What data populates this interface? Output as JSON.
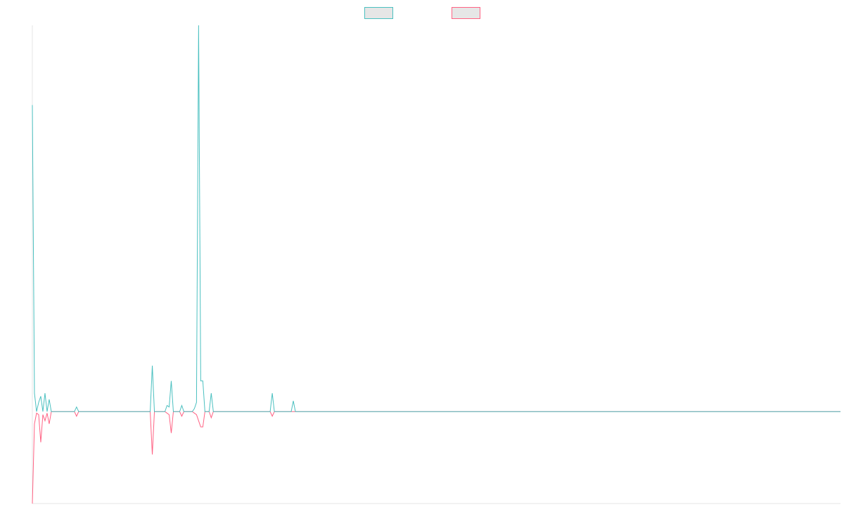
{
  "chart_data": {
    "type": "line",
    "title": "",
    "xlabel": "",
    "ylabel": "",
    "x": [
      0,
      1,
      2,
      3,
      4,
      5,
      6,
      7,
      8,
      9,
      10,
      11,
      12,
      13,
      14,
      15,
      16,
      17,
      18,
      19,
      20,
      21,
      22,
      23,
      24,
      25,
      26,
      27,
      28,
      29,
      30,
      31,
      32,
      33,
      34,
      35,
      36,
      37,
      38,
      39,
      40,
      41,
      42,
      43,
      44,
      45,
      46,
      47,
      48,
      49,
      50,
      51,
      52,
      53,
      54,
      55,
      56,
      57,
      58,
      59,
      60,
      61,
      62,
      63,
      64,
      65,
      66,
      67,
      68,
      69,
      70,
      71,
      72,
      73,
      74,
      75,
      76,
      77,
      78,
      79,
      80,
      81,
      82,
      83,
      84,
      85,
      86,
      87,
      88,
      89,
      90,
      91,
      92,
      93,
      94,
      95,
      96,
      97,
      98,
      99,
      100,
      101,
      102,
      103,
      104,
      105,
      106,
      107,
      108,
      109,
      110,
      111,
      112,
      113,
      114,
      115,
      116,
      117,
      118,
      119,
      120,
      121,
      122,
      123,
      124,
      125,
      126,
      127,
      128,
      129,
      130,
      131,
      132,
      133,
      134,
      135,
      136,
      137,
      138,
      139,
      140,
      141,
      142,
      143,
      144,
      145,
      146,
      147,
      148,
      149,
      150,
      151,
      152,
      153,
      154,
      155,
      156,
      157,
      158,
      159,
      160,
      161,
      162,
      163,
      164,
      165,
      166,
      167,
      168,
      169,
      170,
      171,
      172,
      173,
      174,
      175,
      176,
      177,
      178,
      179,
      180,
      181,
      182,
      183,
      184,
      185,
      186,
      187,
      188,
      189,
      190,
      191,
      192,
      193,
      194,
      195,
      196,
      197,
      198,
      199,
      200,
      201,
      202,
      203,
      204,
      205,
      206,
      207,
      208,
      209,
      210,
      211,
      212,
      213,
      214,
      215,
      216,
      217,
      218,
      219,
      220,
      221,
      222,
      223,
      224,
      225,
      226,
      227,
      228,
      229,
      230,
      231,
      232,
      233,
      234,
      235,
      236,
      237,
      238,
      239,
      240,
      241,
      242,
      243,
      244,
      245,
      246,
      247,
      248,
      249,
      250,
      251,
      252,
      253,
      254,
      255,
      256,
      257,
      258,
      259,
      260,
      261,
      262,
      263,
      264,
      265,
      266,
      267,
      268,
      269,
      270,
      271,
      272,
      273,
      274,
      275,
      276,
      277,
      278,
      279,
      280,
      281,
      282,
      283,
      284,
      285,
      286,
      287,
      288,
      289,
      290,
      291,
      292,
      293,
      294,
      295,
      296,
      297,
      298,
      299,
      300,
      301,
      302,
      303,
      304,
      305,
      306,
      307,
      308,
      309,
      310,
      311,
      312,
      313,
      314,
      315,
      316,
      317,
      318,
      319,
      320,
      321,
      322,
      323,
      324,
      325,
      326,
      327,
      328,
      329,
      330,
      331,
      332,
      333,
      334,
      335,
      336,
      337,
      338,
      339,
      340,
      341,
      342,
      343,
      344,
      345,
      346,
      347,
      348,
      349,
      350,
      351,
      352,
      353,
      354,
      355,
      356,
      357,
      358,
      359,
      360,
      361,
      362,
      363,
      364,
      365,
      366,
      367,
      368,
      369,
      370,
      371,
      372,
      373,
      374,
      375,
      376,
      377,
      378,
      379,
      380,
      381,
      382,
      383,
      384
    ],
    "xlim": [
      0,
      384
    ],
    "ylim": [
      -30,
      126
    ],
    "grid": false,
    "legend_position": "top-center",
    "series": [
      {
        "name": "",
        "color": "#4bc0c0",
        "fill": "#e6e6e6",
        "sparse": [
          [
            0,
            100
          ],
          [
            1,
            6
          ],
          [
            2,
            0
          ],
          [
            3,
            3
          ],
          [
            4,
            5
          ],
          [
            5,
            0
          ],
          [
            6,
            6
          ],
          [
            7,
            0
          ],
          [
            8,
            4
          ],
          [
            9,
            0
          ],
          [
            17,
            0
          ],
          [
            18,
            0
          ],
          [
            21,
            1.5
          ],
          [
            22,
            0
          ],
          [
            42,
            0
          ],
          [
            43,
            0
          ],
          [
            57,
            15
          ],
          [
            58,
            0
          ],
          [
            63,
            0
          ],
          [
            64,
            2
          ],
          [
            65,
            1.5
          ],
          [
            66,
            10
          ],
          [
            67,
            0
          ],
          [
            70,
            0
          ],
          [
            71,
            2
          ],
          [
            72,
            0
          ],
          [
            74,
            0
          ],
          [
            75,
            0
          ],
          [
            77,
            1
          ],
          [
            78,
            3
          ],
          [
            79,
            126
          ],
          [
            80,
            10
          ],
          [
            81,
            10
          ],
          [
            82,
            0
          ],
          [
            84,
            0
          ],
          [
            85,
            6
          ],
          [
            86,
            0
          ],
          [
            113,
            0
          ],
          [
            114,
            6
          ],
          [
            115,
            0
          ],
          [
            123,
            0
          ],
          [
            124,
            3.5
          ],
          [
            125,
            0
          ]
        ]
      },
      {
        "name": "",
        "color": "#ff6384",
        "fill": "#e6e6e6",
        "sparse": [
          [
            0,
            -30
          ],
          [
            1,
            -4
          ],
          [
            2,
            -0.5
          ],
          [
            3,
            -1
          ],
          [
            4,
            -10
          ],
          [
            5,
            -1
          ],
          [
            6,
            -3
          ],
          [
            7,
            -0.5
          ],
          [
            8,
            -4
          ],
          [
            9,
            0
          ],
          [
            17,
            0
          ],
          [
            18,
            0
          ],
          [
            21,
            -1.5
          ],
          [
            22,
            0
          ],
          [
            42,
            0
          ],
          [
            43,
            0
          ],
          [
            57,
            -14
          ],
          [
            58,
            0
          ],
          [
            63,
            0
          ],
          [
            64,
            -0.5
          ],
          [
            65,
            -1
          ],
          [
            66,
            -7
          ],
          [
            67,
            0
          ],
          [
            70,
            0
          ],
          [
            71,
            -1.5
          ],
          [
            72,
            0
          ],
          [
            74,
            0
          ],
          [
            75,
            0
          ],
          [
            77,
            -0.5
          ],
          [
            78,
            -1
          ],
          [
            79,
            -3
          ],
          [
            80,
            -5
          ],
          [
            81,
            -5
          ],
          [
            82,
            0
          ],
          [
            84,
            0
          ],
          [
            85,
            -2
          ],
          [
            86,
            0
          ],
          [
            113,
            0
          ],
          [
            114,
            -1.5
          ],
          [
            115,
            0
          ]
        ]
      }
    ]
  }
}
